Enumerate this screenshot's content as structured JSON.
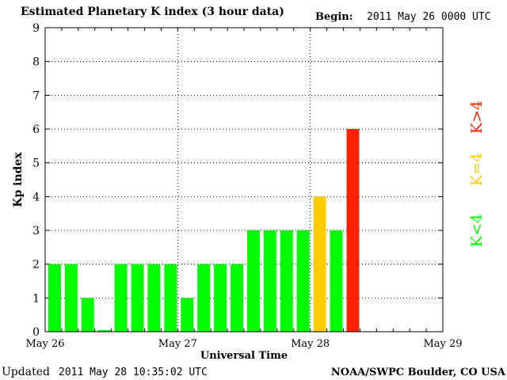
{
  "header": {
    "title": "Estimated Planetary K index (3 hour data)",
    "begin_label": "Begin:",
    "begin_value": "2011 May 26 0000 UTC"
  },
  "footer": {
    "updated_label": "Updated",
    "updated_value": "2011 May 28 10:35:02 UTC",
    "source": "NOAA/SWPC Boulder, CO USA"
  },
  "legend": {
    "low": "K<4",
    "mid": "K=4",
    "high": "K>4"
  },
  "colors": {
    "low": "#00ff00",
    "mid": "#ffcc00",
    "high": "#ff2200",
    "grid": "#000000",
    "axis": "#000000"
  },
  "chart_data": {
    "type": "bar",
    "title": "Estimated Planetary K index (3 hour data)",
    "xlabel": "Universal Time",
    "ylabel": "Kp index",
    "ylim": [
      0,
      9
    ],
    "yticks": [
      "0",
      "1",
      "2",
      "3",
      "4",
      "5",
      "6",
      "7",
      "8",
      "9"
    ],
    "xticks": [
      "May 26",
      "May 27",
      "May 28",
      "May 29"
    ],
    "grid": "dotted",
    "slots_per_day": 8,
    "days": 3,
    "values": [
      2,
      2,
      1,
      0.05,
      2,
      2,
      2,
      2,
      1,
      2,
      2,
      2,
      3,
      3,
      3,
      3,
      4,
      3,
      6
    ],
    "categories": [
      "May 26 00",
      "May 26 03",
      "May 26 06",
      "May 26 09",
      "May 26 12",
      "May 26 15",
      "May 26 18",
      "May 26 21",
      "May 27 00",
      "May 27 03",
      "May 27 06",
      "May 27 09",
      "May 27 12",
      "May 27 15",
      "May 27 18",
      "May 27 21",
      "May 28 00",
      "May 28 03",
      "May 28 06"
    ]
  }
}
